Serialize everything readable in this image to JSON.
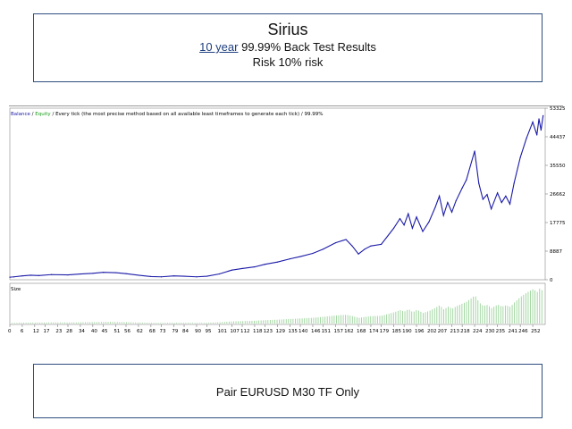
{
  "header": {
    "title": "Sirius",
    "line2_link": "10 year",
    "line2_rest": " 99.99% Back Test Results",
    "line3": "Risk 10% risk"
  },
  "footer": {
    "text": "Pair EURUSD M30 TF Only"
  },
  "legend": {
    "balance": "Balance",
    "sep1": " / ",
    "equity": "Equity",
    "sep2": " / ",
    "rest": "Every tick (the most precise method based on all available least timeframes to generate each tick) / 99.99%"
  },
  "size_label": "Size",
  "colors": {
    "balance": "#1a1aa8",
    "equity": "#1a9e1a",
    "size_bars": "#9ad49a",
    "frame": "#2f4f7f"
  },
  "chart_data": {
    "type": "line",
    "title": "",
    "xlabel": "",
    "ylabel": "",
    "ylim": [
      0,
      53325
    ],
    "y_ticks": [
      0,
      8887,
      17775,
      26662,
      35550,
      44437,
      53325
    ],
    "x_ticks": [
      "0",
      "6",
      "12",
      "17",
      "23",
      "28",
      "34",
      "40",
      "45",
      "51",
      "56",
      "62",
      "68",
      "73",
      "79",
      "84",
      "90",
      "95",
      "101",
      "107",
      "112",
      "118",
      "123",
      "129",
      "135",
      "140",
      "146",
      "151",
      "157",
      "162",
      "168",
      "174",
      "179",
      "185",
      "190",
      "196",
      "202",
      "207",
      "213",
      "218",
      "224",
      "230",
      "235",
      "241",
      "246",
      "252"
    ],
    "x": [
      0,
      2,
      6,
      10,
      14,
      20,
      28,
      34,
      40,
      45,
      51,
      56,
      62,
      68,
      73,
      79,
      84,
      90,
      95,
      101,
      107,
      112,
      118,
      123,
      129,
      135,
      140,
      146,
      151,
      157,
      162,
      165,
      168,
      171,
      174,
      179,
      185,
      188,
      190,
      192,
      194,
      196,
      199,
      202,
      205,
      207,
      209,
      211,
      213,
      215,
      218,
      220,
      224,
      226,
      228,
      230,
      232,
      235,
      237,
      239,
      241,
      243,
      246,
      249,
      252,
      254,
      255,
      256,
      257
    ],
    "series": [
      {
        "values": [
          800,
          900,
          1200,
          1400,
          1300,
          1600,
          1500,
          1800,
          2000,
          2300,
          2200,
          1900,
          1400,
          1000,
          900,
          1200,
          1100,
          900,
          1100,
          1800,
          3000,
          3500,
          4000,
          4800,
          5500,
          6500,
          7200,
          8200,
          9500,
          11500,
          12500,
          10500,
          8000,
          9500,
          10500,
          11000,
          16000,
          19000,
          17000,
          20500,
          16000,
          19500,
          15000,
          18000,
          22500,
          26000,
          20000,
          24000,
          21000,
          24500,
          28500,
          31000,
          40000,
          30000,
          25000,
          26500,
          22000,
          27000,
          24000,
          26000,
          23500,
          30000,
          38000,
          44000,
          49000,
          45000,
          50000,
          46500,
          51000
        ]
      }
    ]
  }
}
